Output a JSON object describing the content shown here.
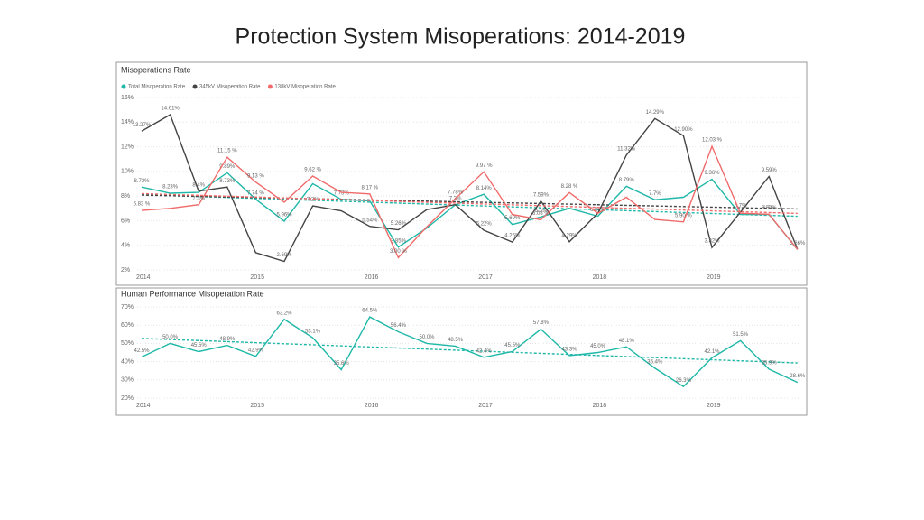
{
  "title": "Protection System Misoperations:  2014-2019",
  "chart_data": [
    {
      "type": "line",
      "title": "Misoperations Rate",
      "categories": [
        "2014",
        null,
        null,
        null,
        "2015",
        null,
        null,
        null,
        "2016",
        null,
        null,
        null,
        "2017",
        null,
        null,
        null,
        "2018",
        null,
        null,
        null,
        "2019",
        null,
        null,
        null
      ],
      "series": [
        {
          "name": "Total Misoperation Rate",
          "color": "#1fb8a8",
          "values": [
            8.73,
            8.23,
            8.3,
            9.89,
            7.74,
            5.96,
            9.0,
            7.73,
            7.6,
            3.85,
            5.4,
            7.3,
            8.14,
            5.69,
            6.3,
            7.0,
            6.36,
            8.79,
            7.7,
            7.9,
            9.36,
            6.5,
            6.5,
            3.66
          ],
          "value_labels": [
            "8.73%",
            "8.23%",
            null,
            "9.89%",
            "7.74 %",
            "5.96%",
            null,
            "7.73%",
            null,
            "3.85%",
            null,
            null,
            "8.14%",
            "5.69%",
            "6.3%",
            null,
            "6.36%",
            "8.79%",
            "7.7%",
            null,
            "9.36%",
            null,
            "6.5%",
            null
          ]
        },
        {
          "name": "345kV Misoperation Rate",
          "color": "#444444",
          "values": [
            13.27,
            14.61,
            8.4,
            8.73,
            3.4,
            2.69,
            7.2,
            6.8,
            5.54,
            5.26,
            6.9,
            7.3,
            5.22,
            4.26,
            7.59,
            4.29,
            6.6,
            11.32,
            14.29,
            12.9,
            3.82,
            6.7,
            9.59,
            3.66
          ],
          "value_labels": [
            "13.27%",
            "14.61%",
            "8.4%",
            "8.73%",
            null,
            "2.69%",
            "7.2%",
            null,
            "5.54%",
            "5.26%",
            null,
            "7.3%",
            "5.22%",
            "4.26%",
            "7.59%",
            "4.29%",
            null,
            "11.32%",
            "14.29%",
            "12.90%",
            "3.82%",
            "6.7%",
            "9.59%",
            "3.66%"
          ]
        },
        {
          "name": "138kV Misoperation Rate",
          "color": "#f06a6a",
          "values": [
            6.83,
            7.0,
            7.3,
            11.15,
            9.13,
            7.5,
            9.62,
            8.3,
            8.17,
            3.0,
            5.5,
            7.78,
            9.97,
            6.5,
            6.08,
            8.28,
            6.6,
            7.9,
            6.1,
            5.9,
            12.03,
            6.6,
            6.52,
            3.66
          ],
          "value_labels": [
            "6.83 %",
            null,
            "7.3%",
            "11.15 %",
            "9.13 %",
            null,
            "9.62 %",
            null,
            "8.17 %",
            "3.00 %",
            null,
            "7.78%",
            "9.97 %",
            null,
            "6.08 %",
            "8.28 %",
            null,
            null,
            null,
            "5.90 %",
            "12.03 %",
            null,
            "6.52%",
            null
          ]
        }
      ],
      "ylim": [
        2,
        16
      ],
      "yticks": [
        {
          "value": 2,
          "label": "2%"
        },
        {
          "value": 4,
          "label": "4%"
        },
        {
          "value": 6,
          "label": "6%"
        },
        {
          "value": 8,
          "label": "8%"
        },
        {
          "value": 10,
          "label": "10%"
        },
        {
          "value": 12,
          "label": "12%"
        },
        {
          "value": 14,
          "label": "14%"
        },
        {
          "value": 16,
          "label": "16%"
        }
      ],
      "grid": true,
      "legend": "top-left",
      "trendline": true
    },
    {
      "type": "line",
      "title": "Human Performance Misoperation Rate",
      "categories": [
        "2014",
        null,
        null,
        null,
        "2015",
        null,
        null,
        null,
        "2016",
        null,
        null,
        null,
        "2017",
        null,
        null,
        null,
        "2018",
        null,
        null,
        null,
        "2019",
        null,
        null,
        null
      ],
      "series": [
        {
          "color": "#1fb8a8",
          "values": [
            42.5,
            50.0,
            45.5,
            48.9,
            42.9,
            63.2,
            53.1,
            35.6,
            64.5,
            56.4,
            50.0,
            48.5,
            42.4,
            45.5,
            57.8,
            43.3,
            45.0,
            48.1,
            36.4,
            26.3,
            42.1,
            51.5,
            35.9,
            28.6
          ],
          "value_labels": [
            "42.5%",
            "50.0%",
            "45.5%",
            "48.9%",
            "42.9%",
            "63.2%",
            "53.1%",
            "35.6%",
            "64.5%",
            "56.4%",
            "50.0%",
            "48.5%",
            "42.4%",
            "45.5%",
            "57.8%",
            "43.3%",
            "45.0%",
            "48.1%",
            "36.4%",
            "26.3%",
            "42.1%",
            "51.5%",
            "35.9%",
            "28.6%"
          ]
        }
      ],
      "ylim": [
        20,
        70
      ],
      "yticks": [
        {
          "value": 20,
          "label": "20%"
        },
        {
          "value": 30,
          "label": "30%"
        },
        {
          "value": 40,
          "label": "40%"
        },
        {
          "value": 50,
          "label": "50%"
        },
        {
          "value": 60,
          "label": "60%"
        },
        {
          "value": 70,
          "label": "70%"
        }
      ],
      "grid": true,
      "trendline": true
    }
  ]
}
